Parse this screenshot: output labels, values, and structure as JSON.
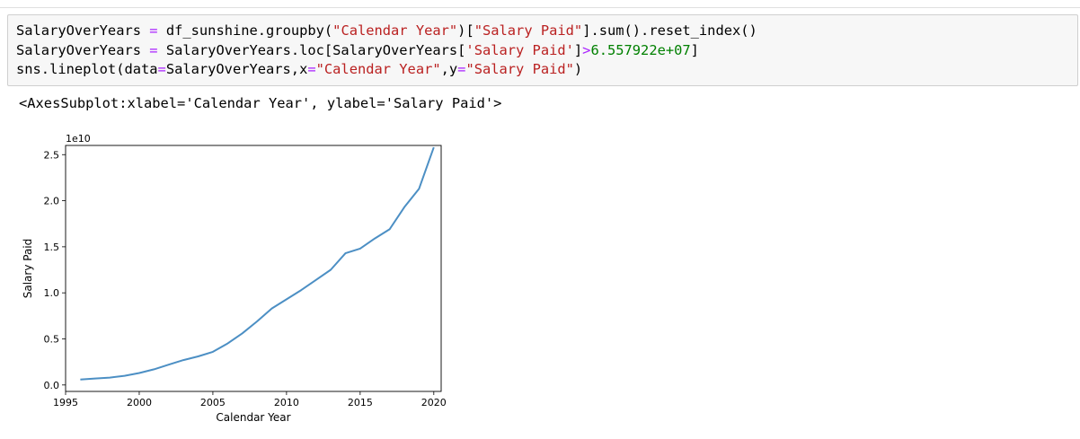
{
  "cell": {
    "code_line1": {
      "a": "SalaryOverYears",
      "op": "=",
      "b": "df_sunshine.groupby(",
      "s1": "\"Calendar Year\"",
      "c": ")[",
      "s2": "\"Salary Paid\"",
      "d": "].sum().reset_index()"
    },
    "code_line2": {
      "a": "SalaryOverYears",
      "op": "=",
      "b": "SalaryOverYears.loc[SalaryOverYears[",
      "s1": "'Salary Paid'",
      "c": "]",
      "op2": ">",
      "num": "6.557922e+07",
      "d": "]"
    },
    "code_line3": {
      "a": "sns.lineplot(data",
      "op": "=",
      "b": "SalaryOverYears,x",
      "op2": "=",
      "s1": "\"Calendar Year\"",
      "c": ",y",
      "op3": "=",
      "s2": "\"Salary Paid\"",
      "d": ")"
    },
    "output_repr": "<AxesSubplot:xlabel='Calendar Year', ylabel='Salary Paid'>"
  },
  "colors": {
    "line": "#4c8fc4",
    "string": "#ba2121",
    "operator": "#aa22ff",
    "number": "#008000",
    "cell_bg": "#f7f7f7"
  },
  "chart_data": {
    "type": "line",
    "title": "",
    "xlabel": "Calendar Year",
    "ylabel": "Salary Paid",
    "offset_label": "1e10",
    "xlim": [
      1995,
      2020.5
    ],
    "ylim": [
      -0.07,
      2.6
    ],
    "x_ticks": [
      1995,
      2000,
      2005,
      2010,
      2015,
      2020
    ],
    "y_ticks": [
      0.0,
      0.5,
      1.0,
      1.5,
      2.0,
      2.5
    ],
    "y_tick_labels": [
      "0.0",
      "0.5",
      "1.0",
      "1.5",
      "2.0",
      "2.5"
    ],
    "grid": false,
    "series": [
      {
        "x": [
          1996,
          1997,
          1998,
          1999,
          2000,
          2001,
          2002,
          2003,
          2004,
          2005,
          2006,
          2007,
          2008,
          2009,
          2010,
          2011,
          2012,
          2013,
          2014,
          2015,
          2016,
          2017,
          2018,
          2019,
          2020
        ],
        "y": [
          0.06,
          0.07,
          0.08,
          0.1,
          0.13,
          0.17,
          0.22,
          0.27,
          0.31,
          0.36,
          0.45,
          0.56,
          0.69,
          0.83,
          0.93,
          1.03,
          1.14,
          1.25,
          1.43,
          1.48,
          1.59,
          1.69,
          1.93,
          2.13,
          2.58
        ]
      }
    ]
  }
}
